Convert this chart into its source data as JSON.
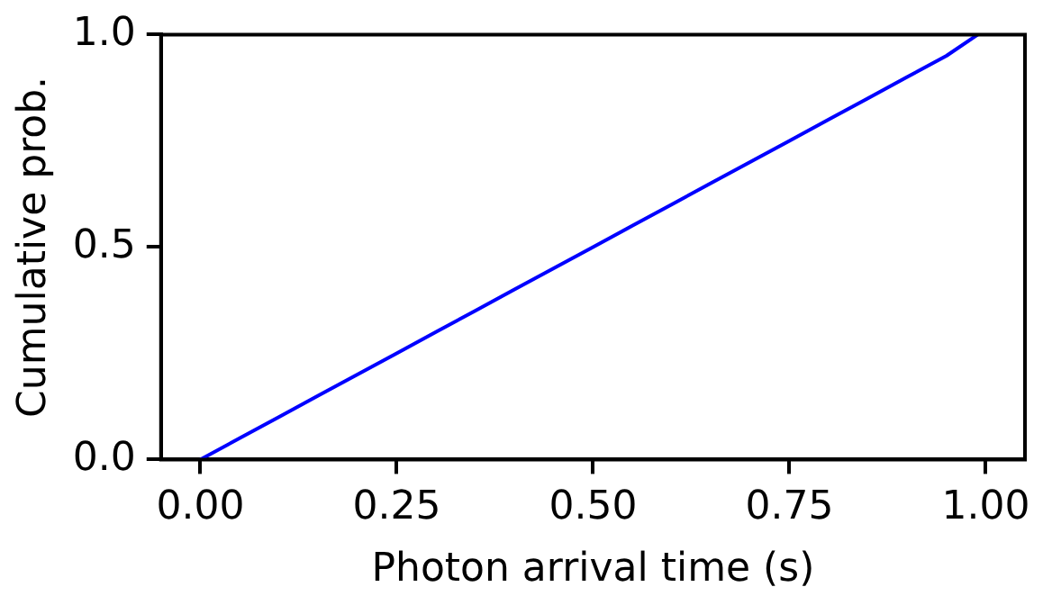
{
  "chart_data": {
    "type": "line",
    "xlabel": "Photon arrival time (s)",
    "ylabel": "Cumulative prob.",
    "x": [
      0,
      0.05,
      0.1,
      0.15,
      0.2,
      0.25,
      0.3,
      0.35,
      0.4,
      0.45,
      0.5,
      0.55,
      0.6,
      0.65,
      0.7,
      0.75,
      0.8,
      0.85,
      0.9,
      0.95,
      0.99
    ],
    "series": [
      {
        "color": "#0000ff",
        "values": [
          0,
          0.05,
          0.1,
          0.15,
          0.2,
          0.25,
          0.3,
          0.35,
          0.4,
          0.45,
          0.5,
          0.55,
          0.6,
          0.65,
          0.7,
          0.75,
          0.8,
          0.85,
          0.9,
          0.95,
          1
        ]
      }
    ],
    "xlim": [
      -0.05,
      1.05
    ],
    "xticks": [
      {
        "value": 0,
        "label": "0.00"
      },
      0.25,
      {
        "value": 0.5,
        "label": "0.50"
      },
      0.75,
      {
        "value": 1,
        "label": "1.00"
      }
    ],
    "ylim": [
      0,
      1
    ],
    "yticks": [
      {
        "value": 0,
        "label": "0.0"
      },
      0.5,
      {
        "value": 1,
        "label": "1.0"
      }
    ],
    "grid": false,
    "legend": false,
    "marker": "none",
    "line_style": "solid"
  }
}
